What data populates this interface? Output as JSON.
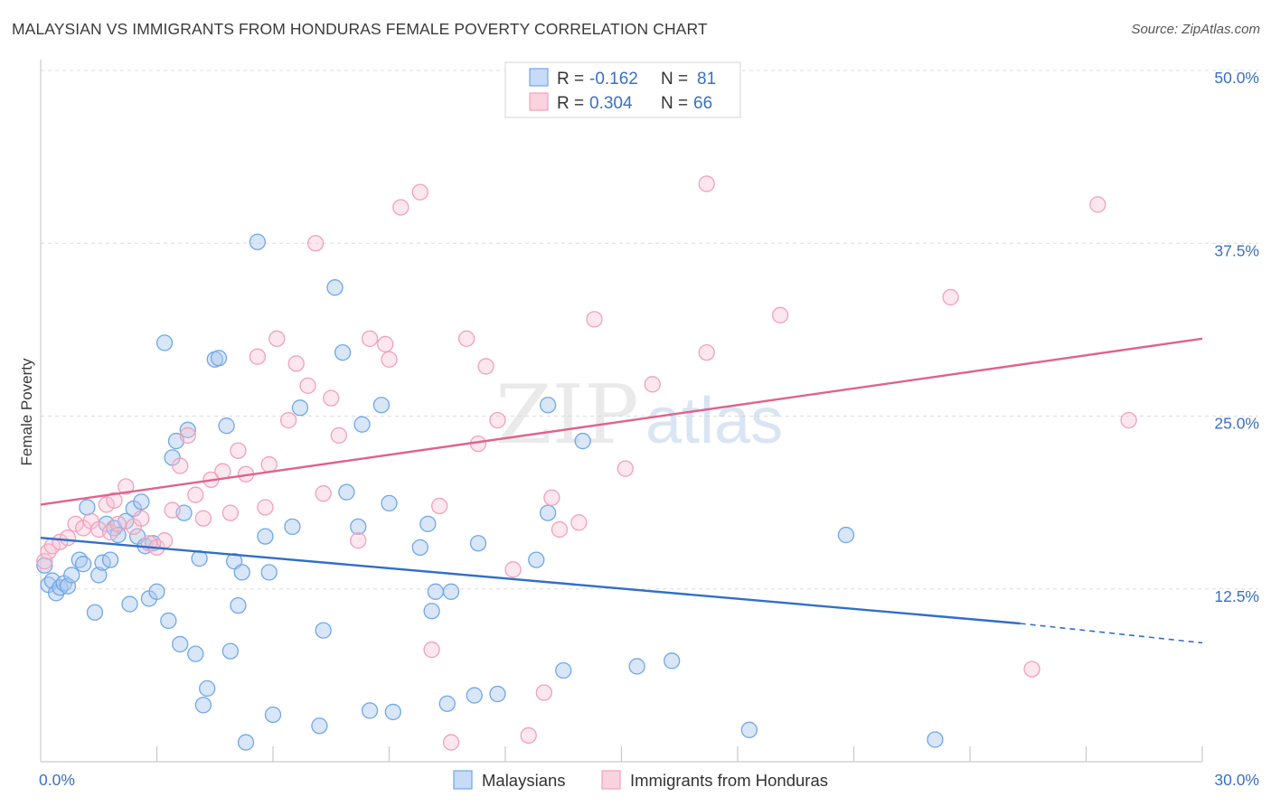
{
  "title": "MALAYSIAN VS IMMIGRANTS FROM HONDURAS FEMALE POVERTY CORRELATION CHART",
  "source": "Source: ZipAtlas.com",
  "watermark": {
    "zip": "ZIP",
    "atlas": "atlas"
  },
  "colors": {
    "blue": "#6fa8e8",
    "blue_line": "#2f6fcc",
    "pink": "#f2a0b8",
    "pink_line": "#e0628c",
    "axis_text": "#3a6fc4"
  },
  "legend": {
    "rows": [
      {
        "r_label": "R =",
        "r_value": "-0.162",
        "n_label": "N =",
        "n_value": "81"
      },
      {
        "r_label": "R =",
        "r_value": "0.304",
        "n_label": "N =",
        "n_value": "66"
      }
    ]
  },
  "bottom_legend": [
    "Malaysians",
    "Immigrants from Honduras"
  ],
  "chart_data": {
    "type": "scatter",
    "title": "MALAYSIAN VS IMMIGRANTS FROM HONDURAS FEMALE POVERTY CORRELATION CHART",
    "xlabel": "",
    "ylabel": "Female Poverty",
    "xlim": [
      0,
      30
    ],
    "ylim": [
      0,
      50
    ],
    "x_tick_labels": [
      "0.0%",
      "30.0%"
    ],
    "y_tick_labels": [
      "12.5%",
      "25.0%",
      "37.5%",
      "50.0%"
    ],
    "y_ticks": [
      12.5,
      25.0,
      37.5,
      50.0
    ],
    "grid": true,
    "series": [
      {
        "name": "Malaysians",
        "color": "#6fa8e8",
        "trend": {
          "x": [
            0,
            25.3
          ],
          "y": [
            16.2,
            10.0
          ],
          "dashed_to": [
            30,
            8.6
          ]
        },
        "points": [
          [
            0.1,
            14.2
          ],
          [
            0.2,
            12.8
          ],
          [
            0.3,
            13.1
          ],
          [
            0.4,
            12.2
          ],
          [
            0.5,
            12.6
          ],
          [
            0.6,
            12.9
          ],
          [
            0.7,
            12.7
          ],
          [
            0.8,
            13.5
          ],
          [
            1.0,
            14.6
          ],
          [
            1.1,
            14.3
          ],
          [
            1.2,
            18.4
          ],
          [
            1.4,
            10.8
          ],
          [
            1.5,
            13.5
          ],
          [
            1.6,
            14.4
          ],
          [
            1.7,
            17.2
          ],
          [
            1.8,
            14.6
          ],
          [
            1.9,
            16.9
          ],
          [
            2.0,
            16.4
          ],
          [
            2.2,
            17.4
          ],
          [
            2.3,
            11.4
          ],
          [
            2.4,
            18.3
          ],
          [
            2.5,
            16.3
          ],
          [
            2.6,
            18.8
          ],
          [
            2.7,
            15.6
          ],
          [
            2.8,
            11.8
          ],
          [
            2.9,
            15.8
          ],
          [
            3.0,
            12.3
          ],
          [
            3.2,
            30.3
          ],
          [
            3.3,
            10.2
          ],
          [
            3.4,
            22.0
          ],
          [
            3.5,
            23.2
          ],
          [
            3.6,
            8.5
          ],
          [
            3.7,
            18.0
          ],
          [
            3.8,
            24.0
          ],
          [
            4.0,
            7.8
          ],
          [
            4.1,
            14.7
          ],
          [
            4.2,
            4.1
          ],
          [
            4.3,
            5.3
          ],
          [
            4.5,
            29.1
          ],
          [
            4.6,
            29.2
          ],
          [
            4.8,
            24.3
          ],
          [
            4.9,
            8.0
          ],
          [
            5.0,
            14.5
          ],
          [
            5.1,
            11.3
          ],
          [
            5.2,
            13.7
          ],
          [
            5.3,
            1.4
          ],
          [
            5.6,
            37.6
          ],
          [
            5.8,
            16.3
          ],
          [
            5.9,
            13.7
          ],
          [
            6.0,
            3.4
          ],
          [
            6.5,
            17.0
          ],
          [
            6.7,
            25.6
          ],
          [
            7.2,
            2.6
          ],
          [
            7.3,
            9.5
          ],
          [
            7.6,
            34.3
          ],
          [
            7.8,
            29.6
          ],
          [
            7.9,
            19.5
          ],
          [
            8.2,
            17.0
          ],
          [
            8.3,
            24.4
          ],
          [
            8.5,
            3.7
          ],
          [
            8.8,
            25.8
          ],
          [
            9.0,
            18.7
          ],
          [
            9.1,
            3.6
          ],
          [
            9.8,
            15.5
          ],
          [
            10.0,
            17.2
          ],
          [
            10.1,
            10.9
          ],
          [
            10.2,
            12.3
          ],
          [
            10.5,
            4.2
          ],
          [
            10.6,
            12.3
          ],
          [
            11.2,
            4.8
          ],
          [
            11.3,
            15.8
          ],
          [
            11.8,
            4.9
          ],
          [
            12.8,
            14.6
          ],
          [
            13.1,
            25.8
          ],
          [
            13.1,
            18.0
          ],
          [
            13.5,
            6.6
          ],
          [
            14.0,
            23.2
          ],
          [
            15.4,
            6.9
          ],
          [
            16.3,
            7.3
          ],
          [
            18.3,
            2.3
          ],
          [
            20.8,
            16.4
          ],
          [
            23.1,
            1.6
          ]
        ]
      },
      {
        "name": "Immigrants from Honduras",
        "color": "#f2a0b8",
        "trend": {
          "x": [
            0,
            30
          ],
          "y": [
            18.6,
            30.6
          ]
        },
        "points": [
          [
            0.1,
            14.5
          ],
          [
            0.2,
            15.2
          ],
          [
            0.3,
            15.6
          ],
          [
            0.5,
            15.9
          ],
          [
            0.7,
            16.2
          ],
          [
            0.9,
            17.2
          ],
          [
            1.1,
            16.9
          ],
          [
            1.3,
            17.4
          ],
          [
            1.5,
            16.8
          ],
          [
            1.7,
            18.6
          ],
          [
            1.8,
            16.6
          ],
          [
            1.9,
            18.9
          ],
          [
            2.0,
            17.2
          ],
          [
            2.2,
            19.9
          ],
          [
            2.4,
            17.0
          ],
          [
            2.6,
            17.6
          ],
          [
            2.8,
            15.8
          ],
          [
            3.0,
            15.5
          ],
          [
            3.2,
            16.0
          ],
          [
            3.4,
            18.2
          ],
          [
            3.6,
            21.4
          ],
          [
            3.8,
            23.6
          ],
          [
            4.0,
            19.3
          ],
          [
            4.2,
            17.6
          ],
          [
            4.4,
            20.4
          ],
          [
            4.7,
            21.0
          ],
          [
            4.9,
            18.0
          ],
          [
            5.1,
            22.5
          ],
          [
            5.3,
            20.8
          ],
          [
            5.6,
            29.3
          ],
          [
            5.8,
            18.4
          ],
          [
            5.9,
            21.5
          ],
          [
            6.1,
            30.6
          ],
          [
            6.4,
            24.7
          ],
          [
            6.6,
            28.8
          ],
          [
            6.9,
            27.2
          ],
          [
            7.1,
            37.5
          ],
          [
            7.3,
            19.4
          ],
          [
            7.5,
            26.3
          ],
          [
            7.7,
            23.6
          ],
          [
            8.2,
            16.0
          ],
          [
            8.5,
            30.6
          ],
          [
            8.9,
            30.2
          ],
          [
            9.0,
            29.1
          ],
          [
            9.3,
            40.1
          ],
          [
            9.8,
            41.2
          ],
          [
            10.1,
            8.1
          ],
          [
            10.3,
            18.5
          ],
          [
            10.6,
            1.4
          ],
          [
            11.0,
            30.6
          ],
          [
            11.3,
            23.0
          ],
          [
            11.5,
            28.6
          ],
          [
            11.8,
            24.7
          ],
          [
            12.2,
            13.9
          ],
          [
            12.6,
            1.9
          ],
          [
            13.0,
            5.0
          ],
          [
            13.2,
            19.1
          ],
          [
            13.4,
            16.8
          ],
          [
            13.9,
            17.3
          ],
          [
            14.3,
            32.0
          ],
          [
            15.1,
            21.2
          ],
          [
            15.8,
            27.3
          ],
          [
            17.2,
            41.8
          ],
          [
            17.2,
            29.6
          ],
          [
            19.1,
            32.3
          ],
          [
            23.5,
            33.6
          ],
          [
            25.6,
            6.7
          ],
          [
            27.3,
            40.3
          ],
          [
            28.1,
            24.7
          ]
        ]
      }
    ]
  }
}
